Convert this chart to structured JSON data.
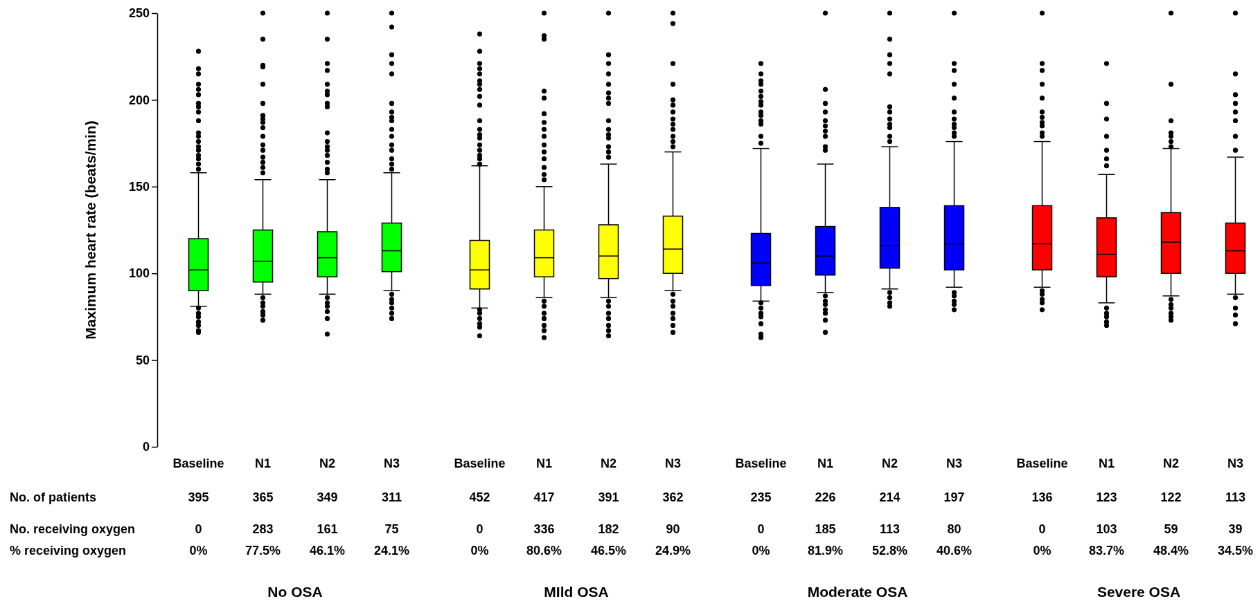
{
  "chart_data": [
    {
      "type": "box",
      "xlabel": "No OSA",
      "ylabel": "Maximum heart rate (beats/min)",
      "categories": [
        "Baseline",
        "N1",
        "N2",
        "N3"
      ],
      "colors": [
        "#00ff00",
        "#00ff00",
        "#00ff00",
        "#00ff00"
      ],
      "ylim": [
        0,
        250
      ],
      "yticks": [
        0,
        50,
        100,
        150,
        200,
        250
      ],
      "boxes": [
        {
          "low": 81,
          "q1": 90,
          "median": 102,
          "q3": 120,
          "high": 158,
          "outliers": [
            228,
            218,
            215,
            209,
            206,
            203,
            198,
            196,
            193,
            188,
            181,
            179,
            176,
            173,
            171,
            168,
            166,
            163,
            160,
            80,
            77,
            75,
            72,
            70,
            67,
            66
          ]
        },
        {
          "low": 88,
          "q1": 95,
          "median": 107,
          "q3": 125,
          "high": 154,
          "outliers": [
            250,
            235,
            220,
            219,
            209,
            198,
            191,
            189,
            187,
            184,
            179,
            174,
            171,
            167,
            164,
            161,
            158,
            86,
            83,
            81,
            78,
            76,
            73
          ]
        },
        {
          "low": 88,
          "q1": 98,
          "median": 109,
          "q3": 124,
          "high": 154,
          "outliers": [
            250,
            235,
            221,
            217,
            209,
            205,
            203,
            198,
            196,
            181,
            176,
            173,
            171,
            168,
            164,
            160,
            158,
            86,
            83,
            81,
            78,
            74,
            65
          ]
        },
        {
          "low": 90,
          "q1": 101,
          "median": 113,
          "q3": 129,
          "high": 158,
          "outliers": [
            250,
            242,
            226,
            221,
            215,
            198,
            193,
            190,
            188,
            183,
            179,
            174,
            171,
            166,
            163,
            160,
            88,
            85,
            83,
            80,
            77,
            74
          ]
        }
      ],
      "annotations": [
        "No. of patients",
        "No. receiving oxygen",
        "% receiving oxygen",
        "395",
        "365",
        "349",
        "311",
        "0",
        "283",
        "161",
        "75",
        "0%",
        "77.5%",
        "46.1%",
        "24.1%"
      ]
    },
    {
      "type": "box",
      "xlabel": "MIld OSA",
      "categories": [
        "Baseline",
        "N1",
        "N2",
        "N3"
      ],
      "colors": [
        "#ffff00",
        "#ffff00",
        "#ffff00",
        "#ffff00"
      ],
      "ylim": [
        0,
        250
      ],
      "tick_labels": "x",
      "boxes": [
        {
          "low": 80,
          "q1": 91,
          "median": 102,
          "q3": 119,
          "high": 162,
          "outliers": [
            238,
            228,
            221,
            218,
            215,
            211,
            209,
            206,
            202,
            197,
            188,
            183,
            180,
            178,
            174,
            171,
            168,
            166,
            163,
            79,
            77,
            74,
            71,
            69,
            64
          ]
        },
        {
          "low": 86,
          "q1": 98,
          "median": 109,
          "q3": 125,
          "high": 150,
          "outliers": [
            250,
            237,
            235,
            205,
            201,
            192,
            187,
            183,
            179,
            174,
            170,
            166,
            161,
            157,
            154,
            84,
            81,
            77,
            74,
            70,
            67,
            63
          ]
        },
        {
          "low": 86,
          "q1": 97,
          "median": 110,
          "q3": 128,
          "high": 163,
          "outliers": [
            250,
            226,
            221,
            215,
            209,
            204,
            201,
            198,
            188,
            183,
            180,
            178,
            173,
            170,
            167,
            84,
            81,
            77,
            74,
            70,
            67,
            64
          ]
        },
        {
          "low": 90,
          "q1": 100,
          "median": 114,
          "q3": 133,
          "high": 170,
          "outliers": [
            250,
            244,
            221,
            209,
            200,
            197,
            193,
            189,
            186,
            183,
            179,
            176,
            173,
            88,
            84,
            81,
            77,
            74,
            70,
            66
          ]
        }
      ],
      "annotations": [
        "452",
        "417",
        "391",
        "362",
        "0",
        "336",
        "182",
        "90",
        "0%",
        "80.6%",
        "46.5%",
        "24.9%"
      ]
    },
    {
      "type": "box",
      "xlabel": "Moderate OSA",
      "categories": [
        "Baseline",
        "N1",
        "N2",
        "N3"
      ],
      "colors": [
        "#0000ff",
        "#0000ff",
        "#0000ff",
        "#0000ff"
      ],
      "ylim": [
        0,
        250
      ],
      "tick_labels": "x",
      "boxes": [
        {
          "low": 84,
          "q1": 93,
          "median": 106,
          "q3": 123,
          "high": 172,
          "outliers": [
            221,
            215,
            211,
            209,
            205,
            202,
            199,
            197,
            193,
            191,
            188,
            186,
            179,
            175,
            83,
            80,
            77,
            75,
            71,
            65,
            63
          ]
        },
        {
          "low": 89,
          "q1": 99,
          "median": 110,
          "q3": 127,
          "high": 163,
          "outliers": [
            250,
            206,
            198,
            193,
            188,
            185,
            182,
            179,
            173,
            171,
            87,
            84,
            82,
            79,
            77,
            73,
            66
          ]
        },
        {
          "low": 91,
          "q1": 103,
          "median": 116,
          "q3": 138,
          "high": 173,
          "outliers": [
            250,
            235,
            226,
            221,
            215,
            196,
            193,
            189,
            186,
            184,
            179,
            176,
            89,
            86,
            83,
            81
          ]
        },
        {
          "low": 92,
          "q1": 102,
          "median": 117,
          "q3": 139,
          "high": 176,
          "outliers": [
            250,
            221,
            217,
            209,
            201,
            193,
            189,
            186,
            184,
            181,
            179,
            89,
            87,
            84,
            82,
            79
          ]
        }
      ],
      "annotations": [
        "235",
        "226",
        "214",
        "197",
        "0",
        "185",
        "113",
        "80",
        "0%",
        "81.9%",
        "52.8%",
        "40.6%"
      ]
    },
    {
      "type": "box",
      "xlabel": "Severe OSA",
      "categories": [
        "Baseline",
        "N1",
        "N2",
        "N3"
      ],
      "colors": [
        "#ff0000",
        "#ff0000",
        "#ff0000",
        "#ff0000"
      ],
      "ylim": [
        0,
        250
      ],
      "tick_labels": "x",
      "boxes": [
        {
          "low": 92,
          "q1": 102,
          "median": 117,
          "q3": 139,
          "high": 176,
          "outliers": [
            250,
            221,
            217,
            209,
            201,
            193,
            190,
            187,
            185,
            181,
            179,
            90,
            88,
            85,
            83,
            79
          ]
        },
        {
          "low": 83,
          "q1": 98,
          "median": 111,
          "q3": 132,
          "high": 157,
          "outliers": [
            221,
            198,
            189,
            179,
            171,
            166,
            162,
            80,
            77,
            75,
            72,
            70
          ]
        },
        {
          "low": 87,
          "q1": 100,
          "median": 118,
          "q3": 135,
          "high": 172,
          "outliers": [
            250,
            209,
            188,
            181,
            179,
            176,
            173,
            85,
            82,
            80,
            77,
            75,
            73
          ]
        },
        {
          "low": 88,
          "q1": 100,
          "median": 113,
          "q3": 129,
          "high": 167,
          "outliers": [
            250,
            215,
            203,
            198,
            193,
            188,
            179,
            171,
            86,
            80,
            76,
            71
          ]
        }
      ],
      "annotations": [
        "136",
        "123",
        "122",
        "113",
        "0",
        "103",
        "59",
        "39",
        "0%",
        "83.7%",
        "48.4%",
        "34.5%"
      ]
    }
  ]
}
